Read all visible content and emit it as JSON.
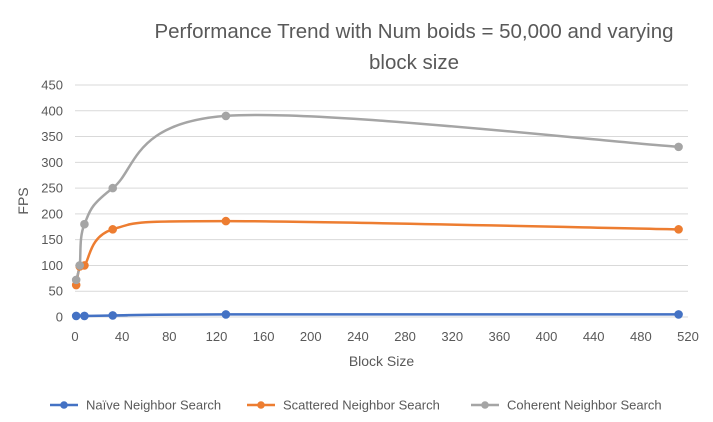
{
  "chart_data": {
    "type": "line",
    "title": "Performance Trend with Num boids = 50,000 and varying block size",
    "xlabel": "Block Size",
    "ylabel": "FPS",
    "xlim": [
      0,
      520
    ],
    "ylim": [
      0,
      450
    ],
    "x_ticks": [
      0,
      40,
      80,
      120,
      160,
      200,
      240,
      280,
      320,
      360,
      400,
      440,
      480,
      520
    ],
    "y_ticks": [
      0,
      50,
      100,
      150,
      200,
      250,
      300,
      350,
      400,
      450
    ],
    "grid": "horizontal",
    "legend_position": "bottom",
    "x": [
      1,
      8,
      32,
      128,
      512
    ],
    "series": [
      {
        "name": "Naïve Neighbor Search",
        "color": "#4472c4",
        "x": [
          1,
          8,
          32,
          128,
          512
        ],
        "values": [
          2,
          2,
          3,
          5,
          5
        ]
      },
      {
        "name": "Scattered Neighbor Search",
        "color": "#ed7d31",
        "x": [
          1,
          4,
          8,
          32,
          128,
          512
        ],
        "values": [
          62,
          98,
          100,
          170,
          186,
          170
        ]
      },
      {
        "name": "Coherent Neighbor Search",
        "color": "#a5a5a5",
        "x": [
          1,
          4,
          8,
          32,
          128,
          512
        ],
        "values": [
          72,
          100,
          180,
          250,
          390,
          330
        ]
      }
    ]
  }
}
